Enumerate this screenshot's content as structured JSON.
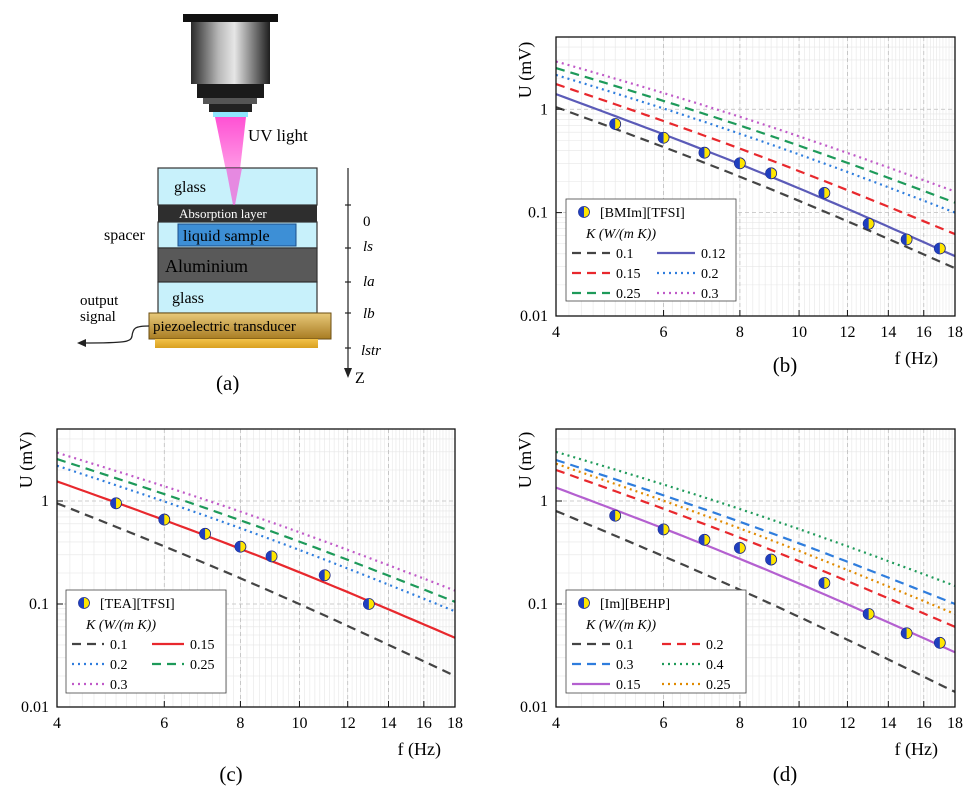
{
  "schematic": {
    "caption": "(a)",
    "uv_label": "UV light",
    "layers": {
      "glass_top": "glass",
      "absorption": "Absorption layer",
      "liquid": "liquid sample",
      "spacer": "spacer",
      "aluminium": "Aluminium",
      "glass_bottom": "glass",
      "piezo": "piezoelectric transducer"
    },
    "output_label_1": "output",
    "output_label_2": "signal",
    "axis": {
      "zero": "0",
      "ls": "ls",
      "la": "la",
      "lb": "lb",
      "lstr": "lstr",
      "z": "Z"
    },
    "colors": {
      "glass": "#c8f1fb",
      "absorption": "#2e2e2e",
      "liquid": "#3d8fd6",
      "aluminium": "#595959",
      "piezo": "#c9a24a",
      "beam": "#ff33cc"
    }
  },
  "chart_data": [
    {
      "type": "line",
      "caption": "(b)",
      "ylabel": "U (mV)",
      "xlabel": "f (Hz)",
      "xscale": "log",
      "yscale": "log",
      "xlim": [
        4,
        18
      ],
      "ylim": [
        0.01,
        5
      ],
      "xticks": [
        4,
        6,
        8,
        10,
        12,
        14,
        16,
        18
      ],
      "yticks": [
        0.01,
        0.1,
        1
      ],
      "ytick_labels": [
        "0.01",
        "0.1",
        "1"
      ],
      "grid": true,
      "legend_placement": "bottom-left",
      "legend_title": "K (W/(m K))",
      "legend_cols": 2,
      "scatter": {
        "name": "[BMIm][TFSI]",
        "x": [
          5,
          6,
          7,
          8,
          9,
          11,
          13,
          15,
          17
        ],
        "y": [
          0.72,
          0.53,
          0.38,
          0.3,
          0.24,
          0.155,
          0.078,
          0.055,
          0.045
        ]
      },
      "series": [
        {
          "name": "0.1",
          "color": "#444444",
          "style": "dashed",
          "y_at_4": 1.05,
          "y_at_18": 0.029
        },
        {
          "name": "0.12",
          "color": "#5b5bb8",
          "style": "solid",
          "y_at_4": 1.4,
          "y_at_18": 0.038
        },
        {
          "name": "0.15",
          "color": "#e8282d",
          "style": "dashed",
          "y_at_4": 1.75,
          "y_at_18": 0.062
        },
        {
          "name": "0.2",
          "color": "#2f7ddd",
          "style": "dotted",
          "y_at_4": 2.15,
          "y_at_18": 0.1
        },
        {
          "name": "0.25",
          "color": "#1e9a5a",
          "style": "dashed",
          "y_at_4": 2.5,
          "y_at_18": 0.125
        },
        {
          "name": "0.3",
          "color": "#c05ac8",
          "style": "dotted",
          "y_at_4": 2.9,
          "y_at_18": 0.16
        }
      ]
    },
    {
      "type": "line",
      "caption": "(c)",
      "ylabel": "U (mV)",
      "xlabel": "f (Hz)",
      "xscale": "log",
      "yscale": "log",
      "xlim": [
        4,
        18
      ],
      "ylim": [
        0.01,
        5
      ],
      "xticks": [
        4,
        6,
        8,
        10,
        12,
        14,
        16,
        18
      ],
      "yticks": [
        0.01,
        0.1,
        1
      ],
      "ytick_labels": [
        "0.01",
        "0.1",
        "1"
      ],
      "grid": true,
      "legend_placement": "bottom-left",
      "legend_title": "K (W/(m K))",
      "legend_cols": 2,
      "scatter": {
        "name": "[TEA][TFSI]",
        "x": [
          5,
          6,
          7,
          8,
          9,
          11,
          13
        ],
        "y": [
          0.95,
          0.66,
          0.48,
          0.36,
          0.29,
          0.19,
          0.1
        ]
      },
      "series": [
        {
          "name": "0.1",
          "color": "#444444",
          "style": "dashed",
          "y_at_4": 0.95,
          "y_at_18": 0.02
        },
        {
          "name": "0.15",
          "color": "#e8282d",
          "style": "solid",
          "y_at_4": 1.55,
          "y_at_18": 0.047
        },
        {
          "name": "0.2",
          "color": "#2f7ddd",
          "style": "dotted",
          "y_at_4": 2.2,
          "y_at_18": 0.085
        },
        {
          "name": "0.25",
          "color": "#1e9a5a",
          "style": "dashed",
          "y_at_4": 2.55,
          "y_at_18": 0.105
        },
        {
          "name": "0.3",
          "color": "#c05ac8",
          "style": "dotted",
          "y_at_4": 2.95,
          "y_at_18": 0.135
        }
      ]
    },
    {
      "type": "line",
      "caption": "(d)",
      "ylabel": "U (mV)",
      "xlabel": "f (Hz)",
      "xscale": "log",
      "yscale": "log",
      "xlim": [
        4,
        18
      ],
      "ylim": [
        0.01,
        5
      ],
      "xticks": [
        4,
        6,
        8,
        10,
        12,
        14,
        16,
        18
      ],
      "yticks": [
        0.01,
        0.1,
        1
      ],
      "ytick_labels": [
        "0.01",
        "0.1",
        "1"
      ],
      "grid": true,
      "legend_placement": "bottom-left",
      "legend_title": "K (W/(m K))",
      "legend_cols": 2,
      "scatter": {
        "name": "[Im][BEHP]",
        "x": [
          5,
          6,
          7,
          8,
          9,
          11,
          13,
          15,
          17
        ],
        "y": [
          0.72,
          0.53,
          0.42,
          0.35,
          0.27,
          0.16,
          0.08,
          0.052,
          0.042
        ]
      },
      "series": [
        {
          "name": "0.1",
          "color": "#444444",
          "style": "dashed",
          "y_at_4": 0.8,
          "y_at_18": 0.014
        },
        {
          "name": "0.2",
          "color": "#e8282d",
          "style": "dashed",
          "y_at_4": 2.0,
          "y_at_18": 0.06
        },
        {
          "name": "0.3",
          "color": "#2f7ddd",
          "style": "dashed",
          "y_at_4": 2.5,
          "y_at_18": 0.1
        },
        {
          "name": "0.4",
          "color": "#1e9a5a",
          "style": "dotted",
          "y_at_4": 3.0,
          "y_at_18": 0.15
        },
        {
          "name": "0.15",
          "color": "#b460d0",
          "style": "solid",
          "y_at_4": 1.35,
          "y_at_18": 0.034
        },
        {
          "name": "0.25",
          "color": "#e08a00",
          "style": "dotted",
          "y_at_4": 2.3,
          "y_at_18": 0.08
        }
      ]
    }
  ]
}
